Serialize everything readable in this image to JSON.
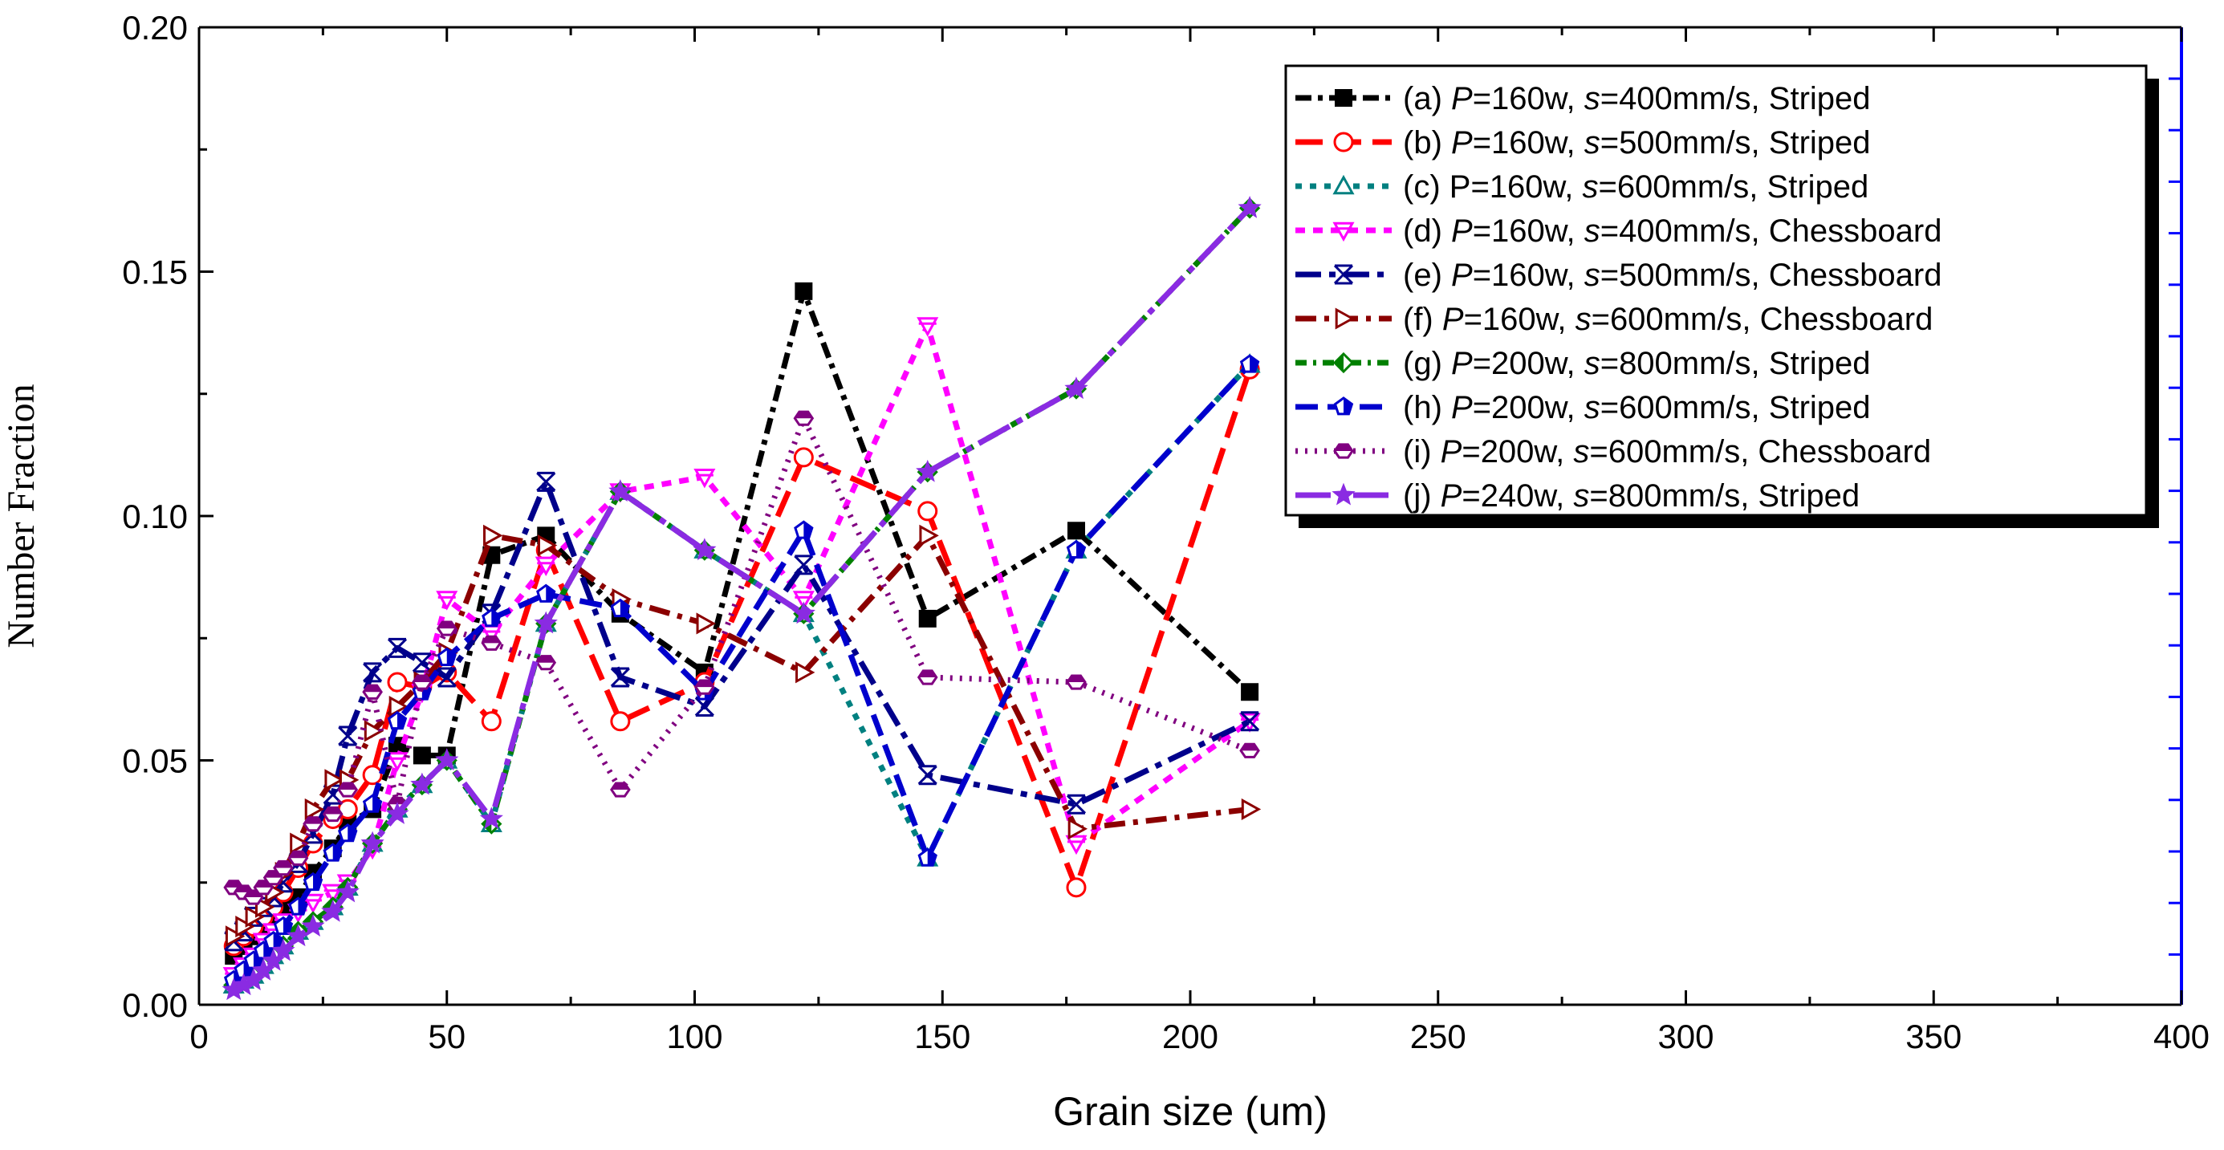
{
  "chart_data": {
    "type": "line",
    "title": "",
    "xlabel": "Grain size (um)",
    "ylabel": "Number Fraction",
    "xlim": [
      0,
      400
    ],
    "ylim": [
      0.0,
      0.2
    ],
    "xticks": [
      "0",
      "50",
      "100",
      "150",
      "200",
      "250",
      "300",
      "350",
      "400"
    ],
    "yticks": [
      "0.00",
      "0.05",
      "0.10",
      "0.15",
      "0.20"
    ],
    "grid": false,
    "legend_position": "top-right",
    "series": [
      {
        "name": "(a) P=160w, s=400mm/s, Striped",
        "prefix": "(a) ",
        "p": "P",
        "pval": "=160w, ",
        "s": "s",
        "sval": "=400mm/s, Striped",
        "color": "#000000",
        "marker": "square-filled",
        "dash": "20,8,6,8",
        "x": [
          7,
          9,
          11,
          13,
          15,
          17,
          20,
          23,
          27,
          30,
          35,
          40,
          45,
          50,
          59,
          70,
          85,
          102,
          122,
          147,
          177,
          212
        ],
        "y": [
          0.01,
          0.012,
          0.014,
          0.016,
          0.018,
          0.02,
          0.022,
          0.027,
          0.032,
          0.037,
          0.04,
          0.053,
          0.051,
          0.051,
          0.092,
          0.096,
          0.08,
          0.068,
          0.146,
          0.079,
          0.097,
          0.064
        ]
      },
      {
        "name": "(b) P=160w, s=500mm/s, Striped",
        "prefix": "(b) ",
        "p": "P",
        "pval": "=160w, ",
        "s": "s",
        "sval": "=500mm/s, Striped",
        "color": "#ff0000",
        "marker": "circle-open",
        "dash": "34,14",
        "x": [
          7,
          9,
          11,
          13,
          15,
          17,
          20,
          23,
          27,
          30,
          35,
          40,
          45,
          50,
          59,
          70,
          85,
          102,
          122,
          147,
          177,
          212
        ],
        "y": [
          0.012,
          0.014,
          0.016,
          0.018,
          0.02,
          0.023,
          0.028,
          0.033,
          0.038,
          0.04,
          0.047,
          0.066,
          0.065,
          0.068,
          0.058,
          0.093,
          0.058,
          0.066,
          0.112,
          0.101,
          0.024,
          0.13
        ]
      },
      {
        "name": "(c) P=160w, s=600mm/s, Striped",
        "prefix": "(c) P",
        "p": "",
        "pval": "=160w, ",
        "s": "s",
        "sval": "=600mm/s, Striped",
        "color": "#008080",
        "marker": "triangle-open",
        "dash": "8,10",
        "x": [
          7,
          9,
          11,
          13,
          15,
          17,
          20,
          23,
          27,
          30,
          35,
          40,
          45,
          50,
          59,
          70,
          85,
          102,
          122,
          147,
          177,
          212
        ],
        "y": [
          0.004,
          0.005,
          0.006,
          0.008,
          0.01,
          0.012,
          0.015,
          0.017,
          0.02,
          0.024,
          0.033,
          0.04,
          0.045,
          0.05,
          0.037,
          0.078,
          0.105,
          0.093,
          0.08,
          0.03,
          0.093,
          0.131
        ]
      },
      {
        "name": "(d) P=160w, s=400mm/s, Chessboard",
        "prefix": "(d) ",
        "p": "P",
        "pval": "=160w, ",
        "s": "s",
        "sval": "=400mm/s, Chessboard",
        "color": "#ff00ff",
        "marker": "triangle-down-open",
        "dash": "12,10",
        "x": [
          7,
          9,
          11,
          13,
          15,
          17,
          20,
          23,
          27,
          30,
          35,
          40,
          45,
          50,
          59,
          70,
          85,
          102,
          122,
          147,
          177,
          212
        ],
        "y": [
          0.006,
          0.008,
          0.01,
          0.013,
          0.015,
          0.017,
          0.019,
          0.021,
          0.023,
          0.025,
          0.032,
          0.05,
          0.064,
          0.083,
          0.076,
          0.09,
          0.105,
          0.108,
          0.083,
          0.139,
          0.033,
          0.058
        ]
      },
      {
        "name": "(e) P=160w, s=500mm/s, Chessboard",
        "prefix": "(e) ",
        "p": "P",
        "pval": "=160w, ",
        "s": "s",
        "sval": "=500mm/s, Chessboard",
        "color": "#00008b",
        "marker": "x-box",
        "dash": "32,10,8,10",
        "x": [
          7,
          9,
          11,
          13,
          15,
          17,
          20,
          23,
          27,
          30,
          35,
          40,
          45,
          50,
          59,
          70,
          85,
          102,
          122,
          147,
          177,
          212
        ],
        "y": [
          0.013,
          0.015,
          0.018,
          0.02,
          0.022,
          0.025,
          0.029,
          0.035,
          0.043,
          0.055,
          0.068,
          0.073,
          0.07,
          0.067,
          0.08,
          0.107,
          0.067,
          0.061,
          0.09,
          0.047,
          0.041,
          0.058
        ]
      },
      {
        "name": "(f) P=160w, s=600mm/s, Chessboard",
        "prefix": "(f) ",
        "p": "P",
        "pval": "=160w, ",
        "s": "s",
        "sval": "=600mm/s, Chessboard",
        "color": "#8b0000",
        "marker": "triangle-right-open",
        "dash": "26,10,6,10",
        "x": [
          7,
          9,
          11,
          13,
          15,
          17,
          20,
          23,
          27,
          30,
          35,
          40,
          45,
          50,
          59,
          70,
          85,
          102,
          122,
          147,
          177,
          212
        ],
        "y": [
          0.014,
          0.016,
          0.018,
          0.02,
          0.023,
          0.027,
          0.033,
          0.04,
          0.046,
          0.046,
          0.056,
          0.061,
          0.066,
          0.072,
          0.096,
          0.094,
          0.083,
          0.078,
          0.068,
          0.096,
          0.036,
          0.04
        ]
      },
      {
        "name": "(g) P=200w, s=800mm/s, Striped",
        "prefix": "(g) ",
        "p": "P",
        "pval": "=200w, ",
        "s": "s",
        "sval": "=800mm/s, Striped",
        "color": "#008000",
        "marker": "diamond-half",
        "dash": "14,8,4,8",
        "x": [
          7,
          9,
          11,
          13,
          15,
          17,
          20,
          23,
          27,
          30,
          35,
          40,
          45,
          50,
          59,
          70,
          85,
          102,
          122,
          147,
          177,
          212
        ],
        "y": [
          0.004,
          0.005,
          0.006,
          0.008,
          0.01,
          0.012,
          0.015,
          0.017,
          0.02,
          0.024,
          0.033,
          0.04,
          0.045,
          0.05,
          0.037,
          0.078,
          0.105,
          0.093,
          0.08,
          0.109,
          0.126,
          0.163
        ]
      },
      {
        "name": "(h) P=200w, s=600mm/s, Striped",
        "prefix": "(h) ",
        "p": "P",
        "pval": "=200w, ",
        "s": "s",
        "sval": "=600mm/s, Striped",
        "color": "#0000cd",
        "marker": "pentagon-half",
        "dash": "28,12",
        "x": [
          7,
          9,
          11,
          13,
          15,
          17,
          20,
          23,
          27,
          30,
          35,
          40,
          45,
          50,
          59,
          70,
          85,
          102,
          122,
          147,
          177,
          212
        ],
        "y": [
          0.005,
          0.007,
          0.009,
          0.011,
          0.013,
          0.016,
          0.02,
          0.025,
          0.031,
          0.035,
          0.041,
          0.058,
          0.064,
          0.071,
          0.079,
          0.084,
          0.081,
          0.064,
          0.097,
          0.03,
          0.093,
          0.131
        ]
      },
      {
        "name": "(i) P=200w, s=600mm/s, Chessboard",
        "prefix": "(i) ",
        "p": "P",
        "pval": "=200w, ",
        "s": "s",
        "sval": "=600mm/s, Chessboard",
        "color": "#800080",
        "marker": "hexagon-half",
        "dash": "3,9",
        "x": [
          7,
          9,
          11,
          13,
          15,
          17,
          20,
          23,
          27,
          30,
          35,
          40,
          45,
          50,
          59,
          70,
          85,
          102,
          122,
          147,
          177,
          212
        ],
        "y": [
          0.024,
          0.023,
          0.022,
          0.024,
          0.026,
          0.028,
          0.03,
          0.037,
          0.039,
          0.044,
          0.064,
          0.041,
          0.066,
          0.077,
          0.074,
          0.07,
          0.044,
          0.065,
          0.12,
          0.067,
          0.066,
          0.052
        ]
      },
      {
        "name": "(j) P=240w, s=800mm/s, Striped",
        "prefix": "(j) ",
        "p": "P",
        "pval": "=240w, ",
        "s": "s",
        "sval": "=800mm/s, Striped",
        "color": "#8a2be2",
        "marker": "star-half",
        "dash": "44,10,8,10",
        "x": [
          7,
          9,
          11,
          13,
          15,
          17,
          20,
          23,
          27,
          30,
          35,
          40,
          45,
          50,
          59,
          70,
          85,
          102,
          122,
          147,
          177,
          212
        ],
        "y": [
          0.003,
          0.004,
          0.005,
          0.007,
          0.009,
          0.011,
          0.014,
          0.016,
          0.019,
          0.023,
          0.033,
          0.039,
          0.045,
          0.05,
          0.038,
          0.078,
          0.105,
          0.093,
          0.08,
          0.109,
          0.126,
          0.163
        ]
      }
    ]
  }
}
